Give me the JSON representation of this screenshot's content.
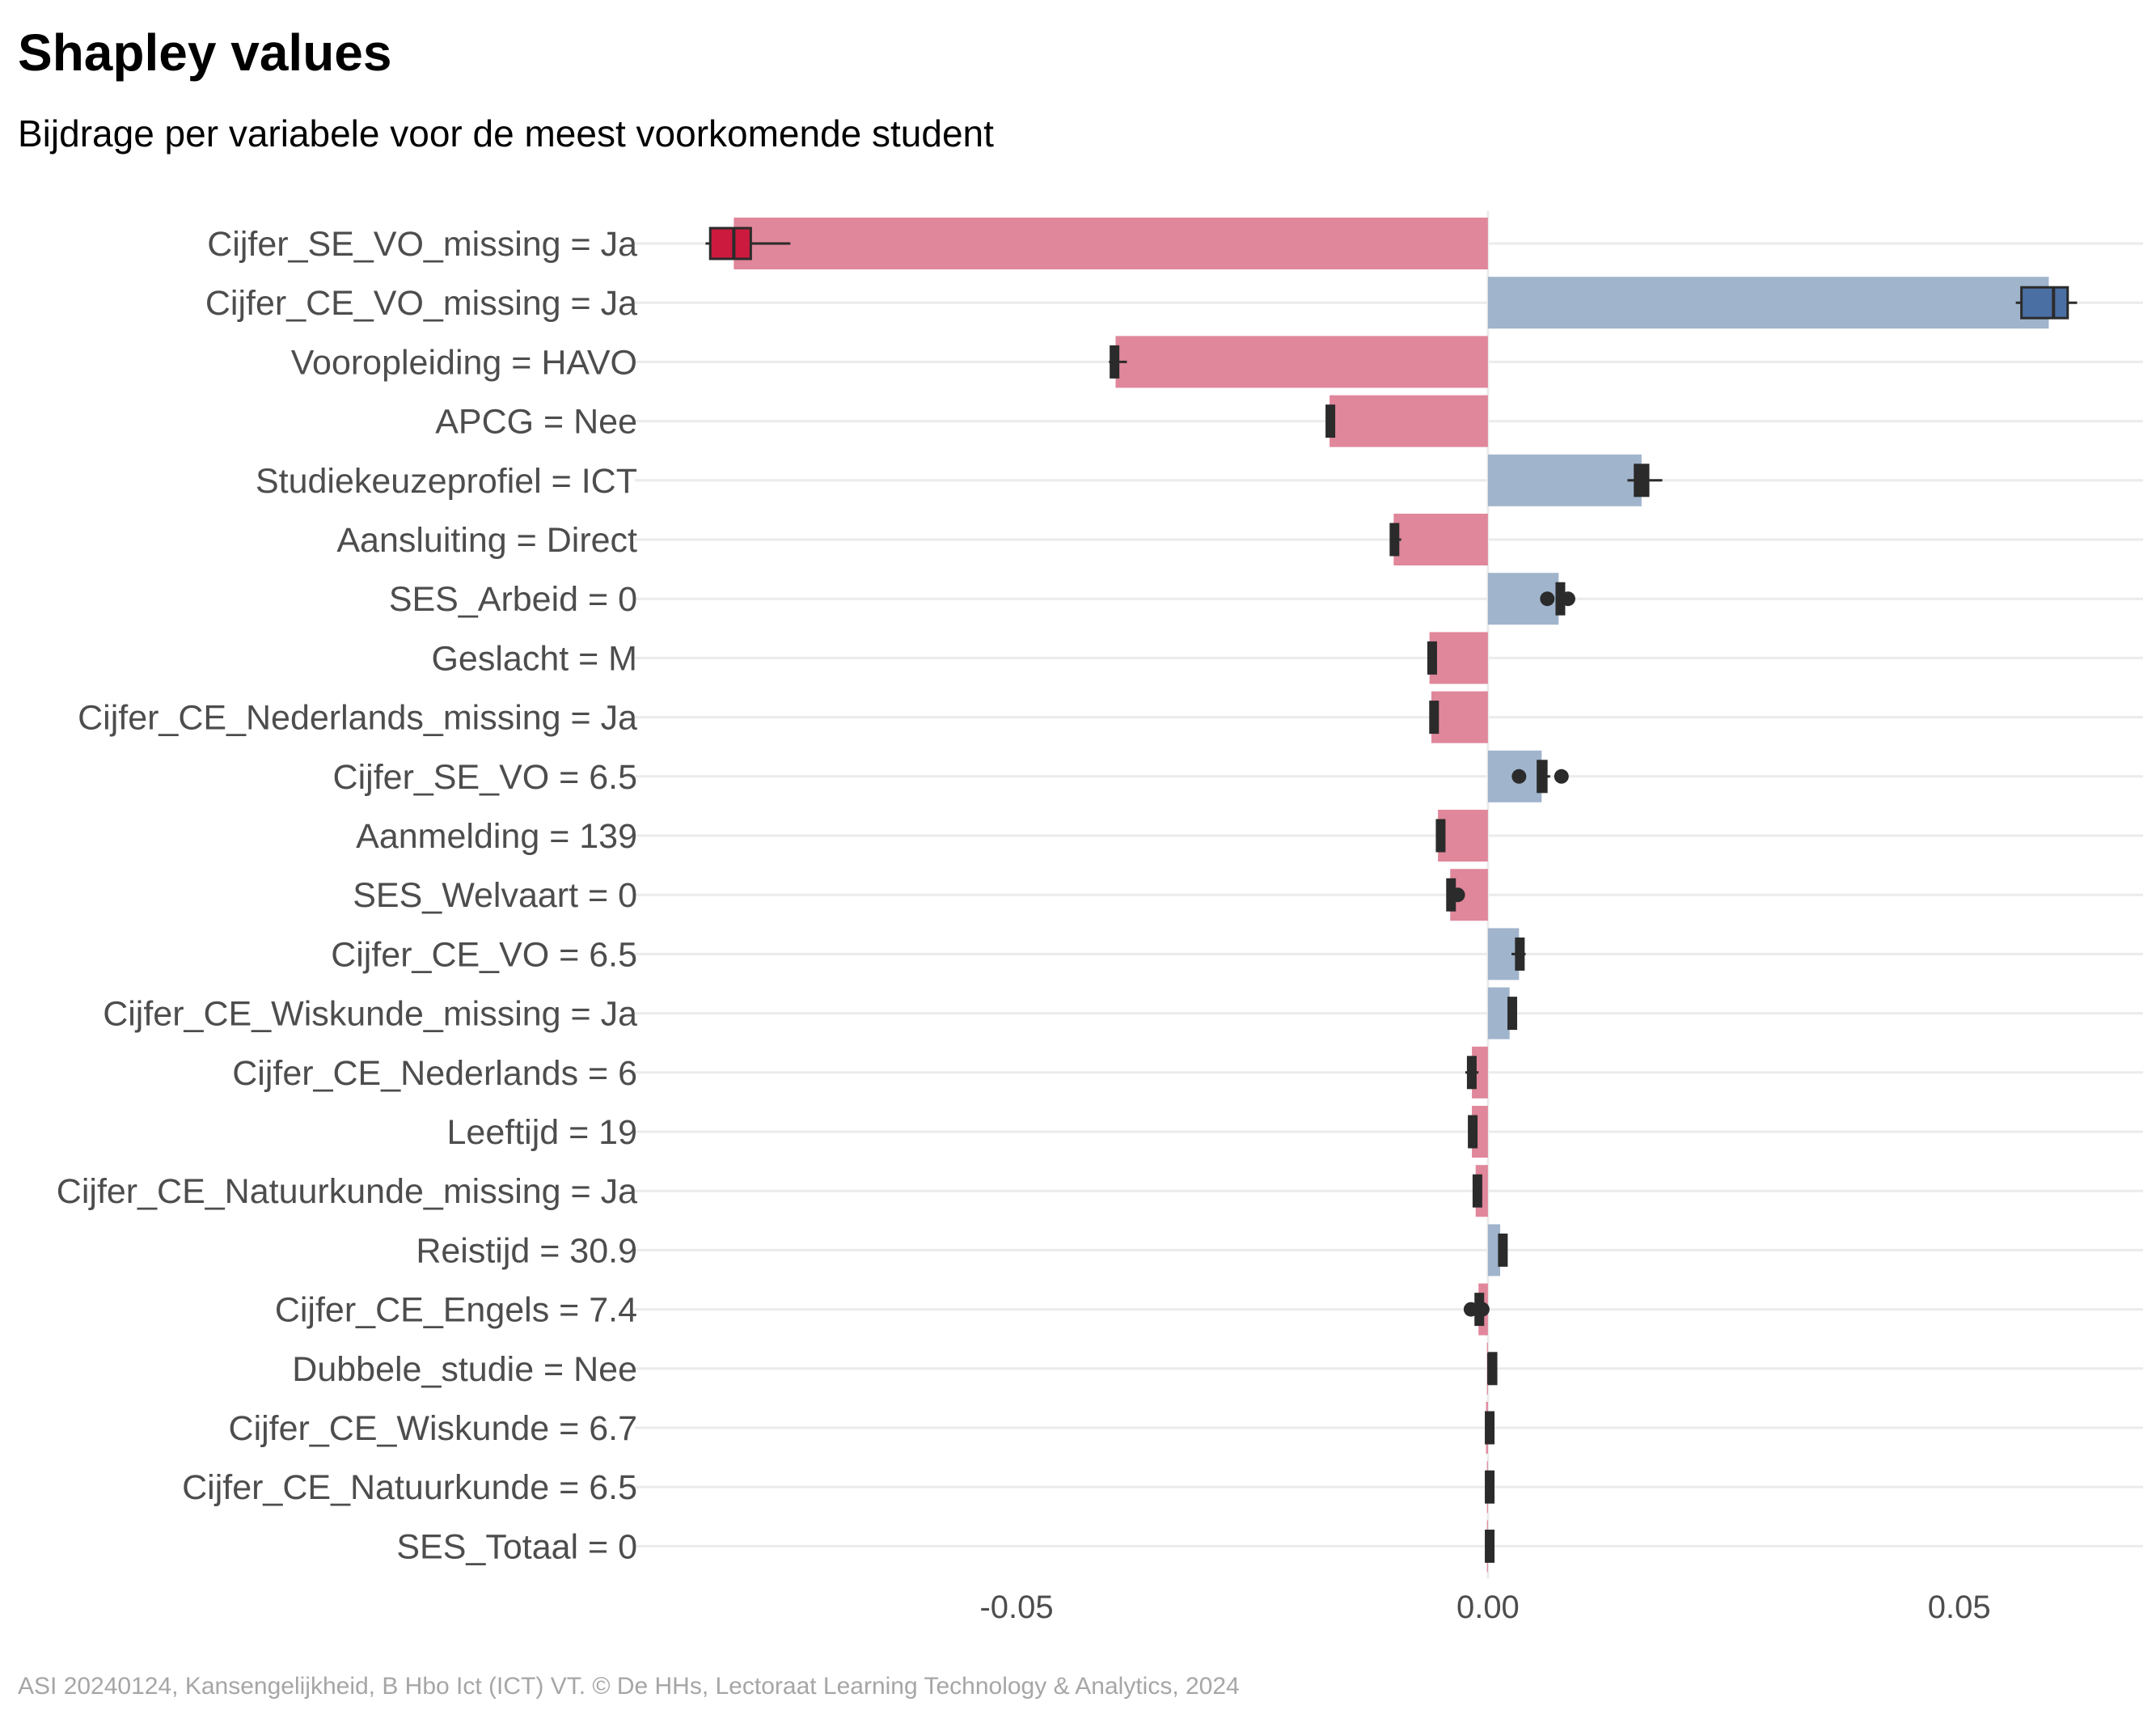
{
  "chart_data": {
    "type": "bar",
    "orientation": "horizontal",
    "title": "Shapley values",
    "subtitle": "Bijdrage per variabele voor de meest voorkomende student",
    "caption": "ASI 20240124, Kansengelijkheid, B Hbo Ict (ICT) VT. © De HHs, Lectoraat Learning Technology & Analytics, 2024",
    "xlabel": "",
    "ylabel": "",
    "xlim": [
      -0.0905,
      0.0695
    ],
    "xticks": [
      {
        "value": -0.05,
        "label": "-0.05"
      },
      {
        "value": 0.0,
        "label": "0.00"
      },
      {
        "value": 0.05,
        "label": "0.05"
      }
    ],
    "grid": true,
    "colors": {
      "negative_bar": "#e0879b",
      "positive_bar": "#a0b4cc",
      "negative_box_first": "#cc1a3f",
      "positive_box_first": "#4a6fa3",
      "box_stroke": "#2b2b2b",
      "gridline": "#ebebeb"
    },
    "categories": [
      "Cijfer_SE_VO_missing = Ja",
      "Cijfer_CE_VO_missing = Ja",
      "Vooropleiding = HAVO",
      "APCG = Nee",
      "Studiekeuzeprofiel = ICT",
      "Aansluiting = Direct",
      "SES_Arbeid = 0",
      "Geslacht = M",
      "Cijfer_CE_Nederlands_missing = Ja",
      "Cijfer_SE_VO = 6.5",
      "Aanmelding = 139",
      "SES_Welvaart = 0",
      "Cijfer_CE_VO = 6.5",
      "Cijfer_CE_Wiskunde_missing = Ja",
      "Cijfer_CE_Nederlands = 6",
      "Leeftijd = 19",
      "Cijfer_CE_Natuurkunde_missing = Ja",
      "Reistijd = 30.9",
      "Cijfer_CE_Engels = 7.4",
      "Dubbele_studie = Nee",
      "Cijfer_CE_Wiskunde = 6.7",
      "Cijfer_CE_Natuurkunde = 6.5",
      "SES_Totaal = 0"
    ],
    "values": [
      -0.08,
      0.0595,
      -0.0395,
      -0.0168,
      0.0163,
      -0.01,
      0.0075,
      -0.0062,
      -0.006,
      0.0057,
      -0.0053,
      -0.004,
      0.0033,
      0.0023,
      -0.0017,
      -0.0017,
      -0.0013,
      0.0013,
      -0.001,
      -0.0001,
      -0.0002,
      -0.0001,
      -0.0001
    ],
    "boxplots": [
      {
        "min": -0.083,
        "q1": -0.0825,
        "median": -0.08,
        "q3": -0.0782,
        "max": -0.074,
        "outliers": []
      },
      {
        "min": 0.056,
        "q1": 0.0566,
        "median": 0.06,
        "q3": 0.0615,
        "max": 0.0625,
        "outliers": []
      },
      {
        "min": -0.0402,
        "q1": -0.04,
        "median": -0.0397,
        "q3": -0.0393,
        "max": -0.0383,
        "outliers": []
      },
      {
        "min": -0.0172,
        "q1": -0.0171,
        "median": -0.0169,
        "q3": -0.0166,
        "max": -0.0164,
        "outliers": []
      },
      {
        "min": 0.0148,
        "q1": 0.0156,
        "median": 0.0162,
        "q3": 0.017,
        "max": 0.0185,
        "outliers": []
      },
      {
        "min": -0.0104,
        "q1": -0.0103,
        "median": -0.01,
        "q3": -0.0097,
        "max": -0.0092,
        "outliers": []
      },
      {
        "min": 0.0072,
        "q1": 0.0073,
        "median": 0.0074,
        "q3": 0.0076,
        "max": 0.0078,
        "outliers": [
          0.0063,
          0.0085
        ]
      },
      {
        "min": -0.0064,
        "q1": -0.0063,
        "median": -0.0062,
        "q3": -0.0061,
        "max": -0.006,
        "outliers": []
      },
      {
        "min": -0.0062,
        "q1": -0.0061,
        "median": -0.006,
        "q3": -0.0059,
        "max": -0.0058,
        "outliers": []
      },
      {
        "min": 0.0053,
        "q1": 0.0053,
        "median": 0.0057,
        "q3": 0.0062,
        "max": 0.0066,
        "outliers": [
          0.0033,
          0.0078
        ]
      },
      {
        "min": -0.0055,
        "q1": -0.0054,
        "median": -0.0053,
        "q3": -0.0052,
        "max": -0.0051,
        "outliers": []
      },
      {
        "min": -0.0044,
        "q1": -0.0043,
        "median": -0.0041,
        "q3": -0.0039,
        "max": -0.0038,
        "outliers": [
          -0.0032
        ]
      },
      {
        "min": 0.0025,
        "q1": 0.003,
        "median": 0.0033,
        "q3": 0.0037,
        "max": 0.004,
        "outliers": []
      },
      {
        "min": 0.0021,
        "q1": 0.0022,
        "median": 0.0023,
        "q3": 0.0024,
        "max": 0.0025,
        "outliers": []
      },
      {
        "min": -0.0024,
        "q1": -0.0021,
        "median": -0.0019,
        "q3": -0.0016,
        "max": -0.001,
        "outliers": []
      },
      {
        "min": -0.0021,
        "q1": -0.002,
        "median": -0.0019,
        "q3": -0.0018,
        "max": -0.0017,
        "outliers": []
      },
      {
        "min": -0.0016,
        "q1": -0.0015,
        "median": -0.0014,
        "q3": -0.0013,
        "max": -0.0012,
        "outliers": []
      },
      {
        "min": 0.0011,
        "q1": 0.0012,
        "median": 0.0013,
        "q3": 0.0014,
        "max": 0.0015,
        "outliers": []
      },
      {
        "min": -0.0013,
        "q1": -0.0013,
        "median": -0.0012,
        "q3": -0.0011,
        "max": -0.001,
        "outliers": [
          -0.0018,
          -0.0006
        ]
      },
      {
        "min": 0.0,
        "q1": 0.0001,
        "median": 0.0001,
        "q3": 0.0002,
        "max": 0.0003,
        "outliers": []
      },
      {
        "min": -0.0003,
        "q1": -0.0002,
        "median": -0.0001,
        "q3": 0.0,
        "max": 0.0001,
        "outliers": []
      },
      {
        "min": -0.0003,
        "q1": -0.0002,
        "median": -0.0001,
        "q3": 0.0,
        "max": 0.0001,
        "outliers": []
      },
      {
        "min": -0.0003,
        "q1": -0.0002,
        "median": -0.0001,
        "q3": 0.0,
        "max": 0.0001,
        "outliers": []
      }
    ]
  }
}
